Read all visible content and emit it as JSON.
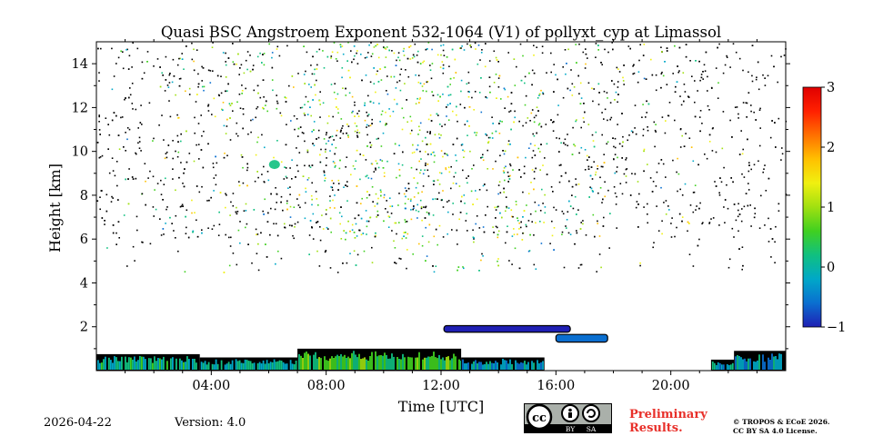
{
  "chart_data": {
    "type": "heatmap",
    "title": "Quasi BSC Angstroem Exponent 532-1064 (V1) of pollyxt_cyp at Limassol",
    "xlabel": "Time [UTC]",
    "ylabel": "Height [km]",
    "xlim_hours": [
      0,
      24
    ],
    "ylim_km": [
      0,
      15
    ],
    "x_ticks": [
      {
        "value": 4,
        "label": "04:00"
      },
      {
        "value": 8,
        "label": "08:00"
      },
      {
        "value": 12,
        "label": "12:00"
      },
      {
        "value": 16,
        "label": "16:00"
      },
      {
        "value": 20,
        "label": "20:00"
      }
    ],
    "y_ticks": [
      {
        "value": 2,
        "label": "2"
      },
      {
        "value": 4,
        "label": "4"
      },
      {
        "value": 6,
        "label": "6"
      },
      {
        "value": 8,
        "label": "8"
      },
      {
        "value": 10,
        "label": "10"
      },
      {
        "value": 12,
        "label": "12"
      },
      {
        "value": 14,
        "label": "14"
      }
    ],
    "colorbar": {
      "min": -1,
      "max": 3,
      "ticks": [
        {
          "value": 3,
          "label": "3"
        },
        {
          "value": 2,
          "label": "2"
        },
        {
          "value": 1,
          "label": "1"
        },
        {
          "value": 0,
          "label": "0"
        },
        {
          "value": -1,
          "label": "−1"
        }
      ],
      "colormap": [
        "#1f1fb4",
        "#0a6fd0",
        "#00a8c8",
        "#10c080",
        "#40d020",
        "#a0e010",
        "#f0f010",
        "#ffc000",
        "#ff7000",
        "#ff2000",
        "#e00000"
      ]
    },
    "features": {
      "boundary_layer": [
        {
          "from_h": 0.0,
          "to_h": 3.6,
          "top_km": 0.75,
          "value": 0.1
        },
        {
          "from_h": 3.6,
          "to_h": 7.0,
          "top_km": 0.6,
          "value": 0.0
        },
        {
          "from_h": 7.0,
          "to_h": 12.7,
          "top_km": 1.0,
          "value": 0.5
        },
        {
          "from_h": 12.7,
          "to_h": 15.6,
          "top_km": 0.6,
          "value": -0.2
        },
        {
          "from_h": 21.4,
          "to_h": 22.2,
          "top_km": 0.5,
          "value": -0.1
        },
        {
          "from_h": 22.2,
          "to_h": 24.0,
          "top_km": 0.9,
          "value": -0.2
        }
      ],
      "aerosol_layers": [
        {
          "from_h": 12.1,
          "to_h": 16.5,
          "bottom_km": 1.75,
          "top_km": 2.05,
          "value": -0.8
        },
        {
          "from_h": 16.0,
          "to_h": 17.8,
          "bottom_km": 1.3,
          "top_km": 1.65,
          "value": -0.6
        }
      ],
      "cloud_patch": {
        "time_h": 6.2,
        "height_km": 9.4,
        "value": 0.0
      },
      "noise_region": {
        "from_h": 0.0,
        "to_h": 24.0,
        "from_km": 4.5,
        "to_km": 15.0,
        "typical_value_range": [
          -0.5,
          1.8
        ]
      }
    }
  },
  "footer": {
    "date": "2026-04-22",
    "version": "Version: 4.0",
    "preliminary": "Preliminary",
    "results": "Results.",
    "copyright_line1": "© TROPOS & ECoE 2026.",
    "copyright_line2": "CC BY SA 4.0 License.",
    "license_badge": {
      "cc": "cc",
      "by": "BY",
      "sa": "SA"
    }
  },
  "colors": {
    "boundary_dark": "#000000",
    "preliminary_red": "#e8302a",
    "badge_grey": "#aab0aa"
  }
}
